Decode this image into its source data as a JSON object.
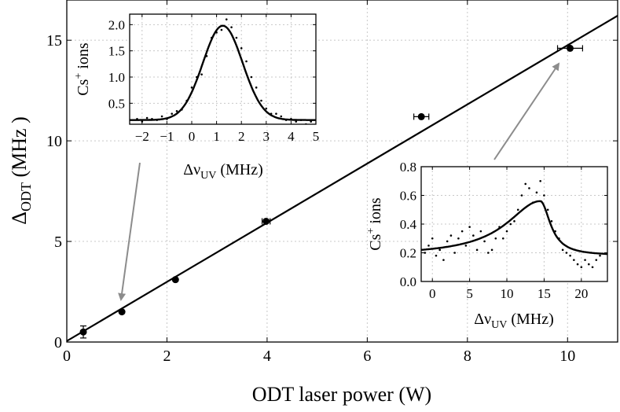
{
  "chart_data": [
    {
      "id": "main",
      "type": "scatter",
      "xlabel": "ODT laser power (W)",
      "ylabel": "Δ_ODT (MHz)",
      "ylabel_main": "Δ",
      "ylabel_sub": "ODT",
      "ylabel_unit": " (MHz )",
      "xlim": [
        0,
        11
      ],
      "ylim": [
        0,
        17
      ],
      "xticks": [
        0,
        2,
        4,
        6,
        8,
        10
      ],
      "yticks": [
        0,
        5,
        10,
        15
      ],
      "grid": true,
      "series": [
        {
          "name": "data",
          "x": [
            0.33,
            1.1,
            2.17,
            3.98,
            7.08,
            10.05
          ],
          "y": [
            0.5,
            1.5,
            3.1,
            6.0,
            11.2,
            14.6
          ],
          "xerr": [
            0.05,
            0.05,
            0.05,
            0.08,
            0.15,
            0.25
          ],
          "yerr": [
            0.3,
            0.1,
            0.15,
            0.1,
            0.1,
            0.1
          ]
        },
        {
          "name": "fit",
          "type": "line",
          "slope": 1.47,
          "intercept": 0.05
        }
      ]
    },
    {
      "id": "inset1",
      "type": "scatter",
      "xlabel_main": "Δν",
      "xlabel_sub": "UV",
      "xlabel_unit": " (MHz)",
      "ylabel": "Cs⁺ ions",
      "ylabel_main": "Cs",
      "ylabel_sup": "+",
      "ylabel_unit": " ions",
      "xlim": [
        -2.5,
        5
      ],
      "ylim": [
        0.1,
        2.2
      ],
      "xticks": [
        -2,
        -1,
        0,
        1,
        2,
        3,
        4,
        5
      ],
      "xtick_labels": [
        "−2",
        "−1",
        "0",
        "1",
        "2",
        "3",
        "4",
        "5"
      ],
      "yticks": [
        0.5,
        1.0,
        1.5,
        2.0
      ],
      "ytick_labels": [
        "0.5",
        "1.0",
        "1.5",
        "2.0"
      ],
      "fit": {
        "model": "gaussian",
        "center": 1.25,
        "sigma": 0.8,
        "amplitude": 1.8,
        "offset": 0.18
      },
      "points": [
        [
          -2.2,
          0.2
        ],
        [
          -2.0,
          0.15
        ],
        [
          -1.8,
          0.22
        ],
        [
          -1.6,
          0.2
        ],
        [
          -1.4,
          0.18
        ],
        [
          -1.2,
          0.25
        ],
        [
          -1.0,
          0.2
        ],
        [
          -0.8,
          0.3
        ],
        [
          -0.6,
          0.35
        ],
        [
          -0.4,
          0.38
        ],
        [
          -0.2,
          0.55
        ],
        [
          0.0,
          0.8
        ],
        [
          0.2,
          1.0
        ],
        [
          0.4,
          1.05
        ],
        [
          0.6,
          1.4
        ],
        [
          0.8,
          1.75
        ],
        [
          1.0,
          1.85
        ],
        [
          1.2,
          1.9
        ],
        [
          1.4,
          2.1
        ],
        [
          1.6,
          1.95
        ],
        [
          1.8,
          1.75
        ],
        [
          2.0,
          1.55
        ],
        [
          2.2,
          1.3
        ],
        [
          2.4,
          1.0
        ],
        [
          2.6,
          0.8
        ],
        [
          2.8,
          0.55
        ],
        [
          3.0,
          0.4
        ],
        [
          3.2,
          0.3
        ],
        [
          3.4,
          0.3
        ],
        [
          3.6,
          0.25
        ],
        [
          3.8,
          0.18
        ],
        [
          4.0,
          0.2
        ],
        [
          4.2,
          0.15
        ],
        [
          4.4,
          0.18
        ],
        [
          4.6,
          0.1
        ],
        [
          4.8,
          0.15
        ]
      ]
    },
    {
      "id": "inset2",
      "type": "scatter",
      "xlabel_main": "Δν",
      "xlabel_sub": "UV",
      "xlabel_unit": " (MHz)",
      "ylabel": "Cs⁺ ions",
      "ylabel_main": "Cs",
      "ylabel_sup": "+",
      "ylabel_unit": " ions",
      "xlim": [
        -1.5,
        23.5
      ],
      "ylim": [
        0,
        0.8
      ],
      "xticks": [
        0,
        5,
        10,
        15,
        20
      ],
      "xtick_labels": [
        "0",
        "5",
        "10",
        "15",
        "20"
      ],
      "yticks": [
        0.0,
        0.2,
        0.4,
        0.6,
        0.8
      ],
      "ytick_labels": [
        "0.0",
        "0.2",
        "0.4",
        "0.6",
        "0.8"
      ],
      "fit": {
        "model": "skewed-lorentzian",
        "center": 14.5,
        "peak": 0.56,
        "baseline": 0.18
      },
      "points": [
        [
          -1.0,
          0.2
        ],
        [
          -0.5,
          0.25
        ],
        [
          0.0,
          0.3
        ],
        [
          0.5,
          0.18
        ],
        [
          1.0,
          0.22
        ],
        [
          1.5,
          0.15
        ],
        [
          2.0,
          0.28
        ],
        [
          2.5,
          0.32
        ],
        [
          3.0,
          0.2
        ],
        [
          3.5,
          0.3
        ],
        [
          4.0,
          0.35
        ],
        [
          4.5,
          0.25
        ],
        [
          5.0,
          0.38
        ],
        [
          5.5,
          0.32
        ],
        [
          6.0,
          0.22
        ],
        [
          6.5,
          0.35
        ],
        [
          7.0,
          0.28
        ],
        [
          7.5,
          0.2
        ],
        [
          8.0,
          0.22
        ],
        [
          8.5,
          0.3
        ],
        [
          9.0,
          0.38
        ],
        [
          9.5,
          0.3
        ],
        [
          10.0,
          0.35
        ],
        [
          10.5,
          0.4
        ],
        [
          11.0,
          0.42
        ],
        [
          11.5,
          0.5
        ],
        [
          12.0,
          0.6
        ],
        [
          12.5,
          0.68
        ],
        [
          13.0,
          0.65
        ],
        [
          13.5,
          0.55
        ],
        [
          14.0,
          0.62
        ],
        [
          14.5,
          0.7
        ],
        [
          15.0,
          0.6
        ],
        [
          15.5,
          0.5
        ],
        [
          16.0,
          0.42
        ],
        [
          16.5,
          0.35
        ],
        [
          17.0,
          0.3
        ],
        [
          17.5,
          0.22
        ],
        [
          18.0,
          0.2
        ],
        [
          18.5,
          0.18
        ],
        [
          19.0,
          0.15
        ],
        [
          19.5,
          0.12
        ],
        [
          20.0,
          0.1
        ],
        [
          20.5,
          0.15
        ],
        [
          21.0,
          0.12
        ],
        [
          21.5,
          0.1
        ],
        [
          22.0,
          0.15
        ],
        [
          22.5,
          0.18
        ]
      ]
    }
  ],
  "colors": {
    "data": "#000000",
    "grid": "#c8c8c8",
    "arrow": "#8c8c8c"
  }
}
